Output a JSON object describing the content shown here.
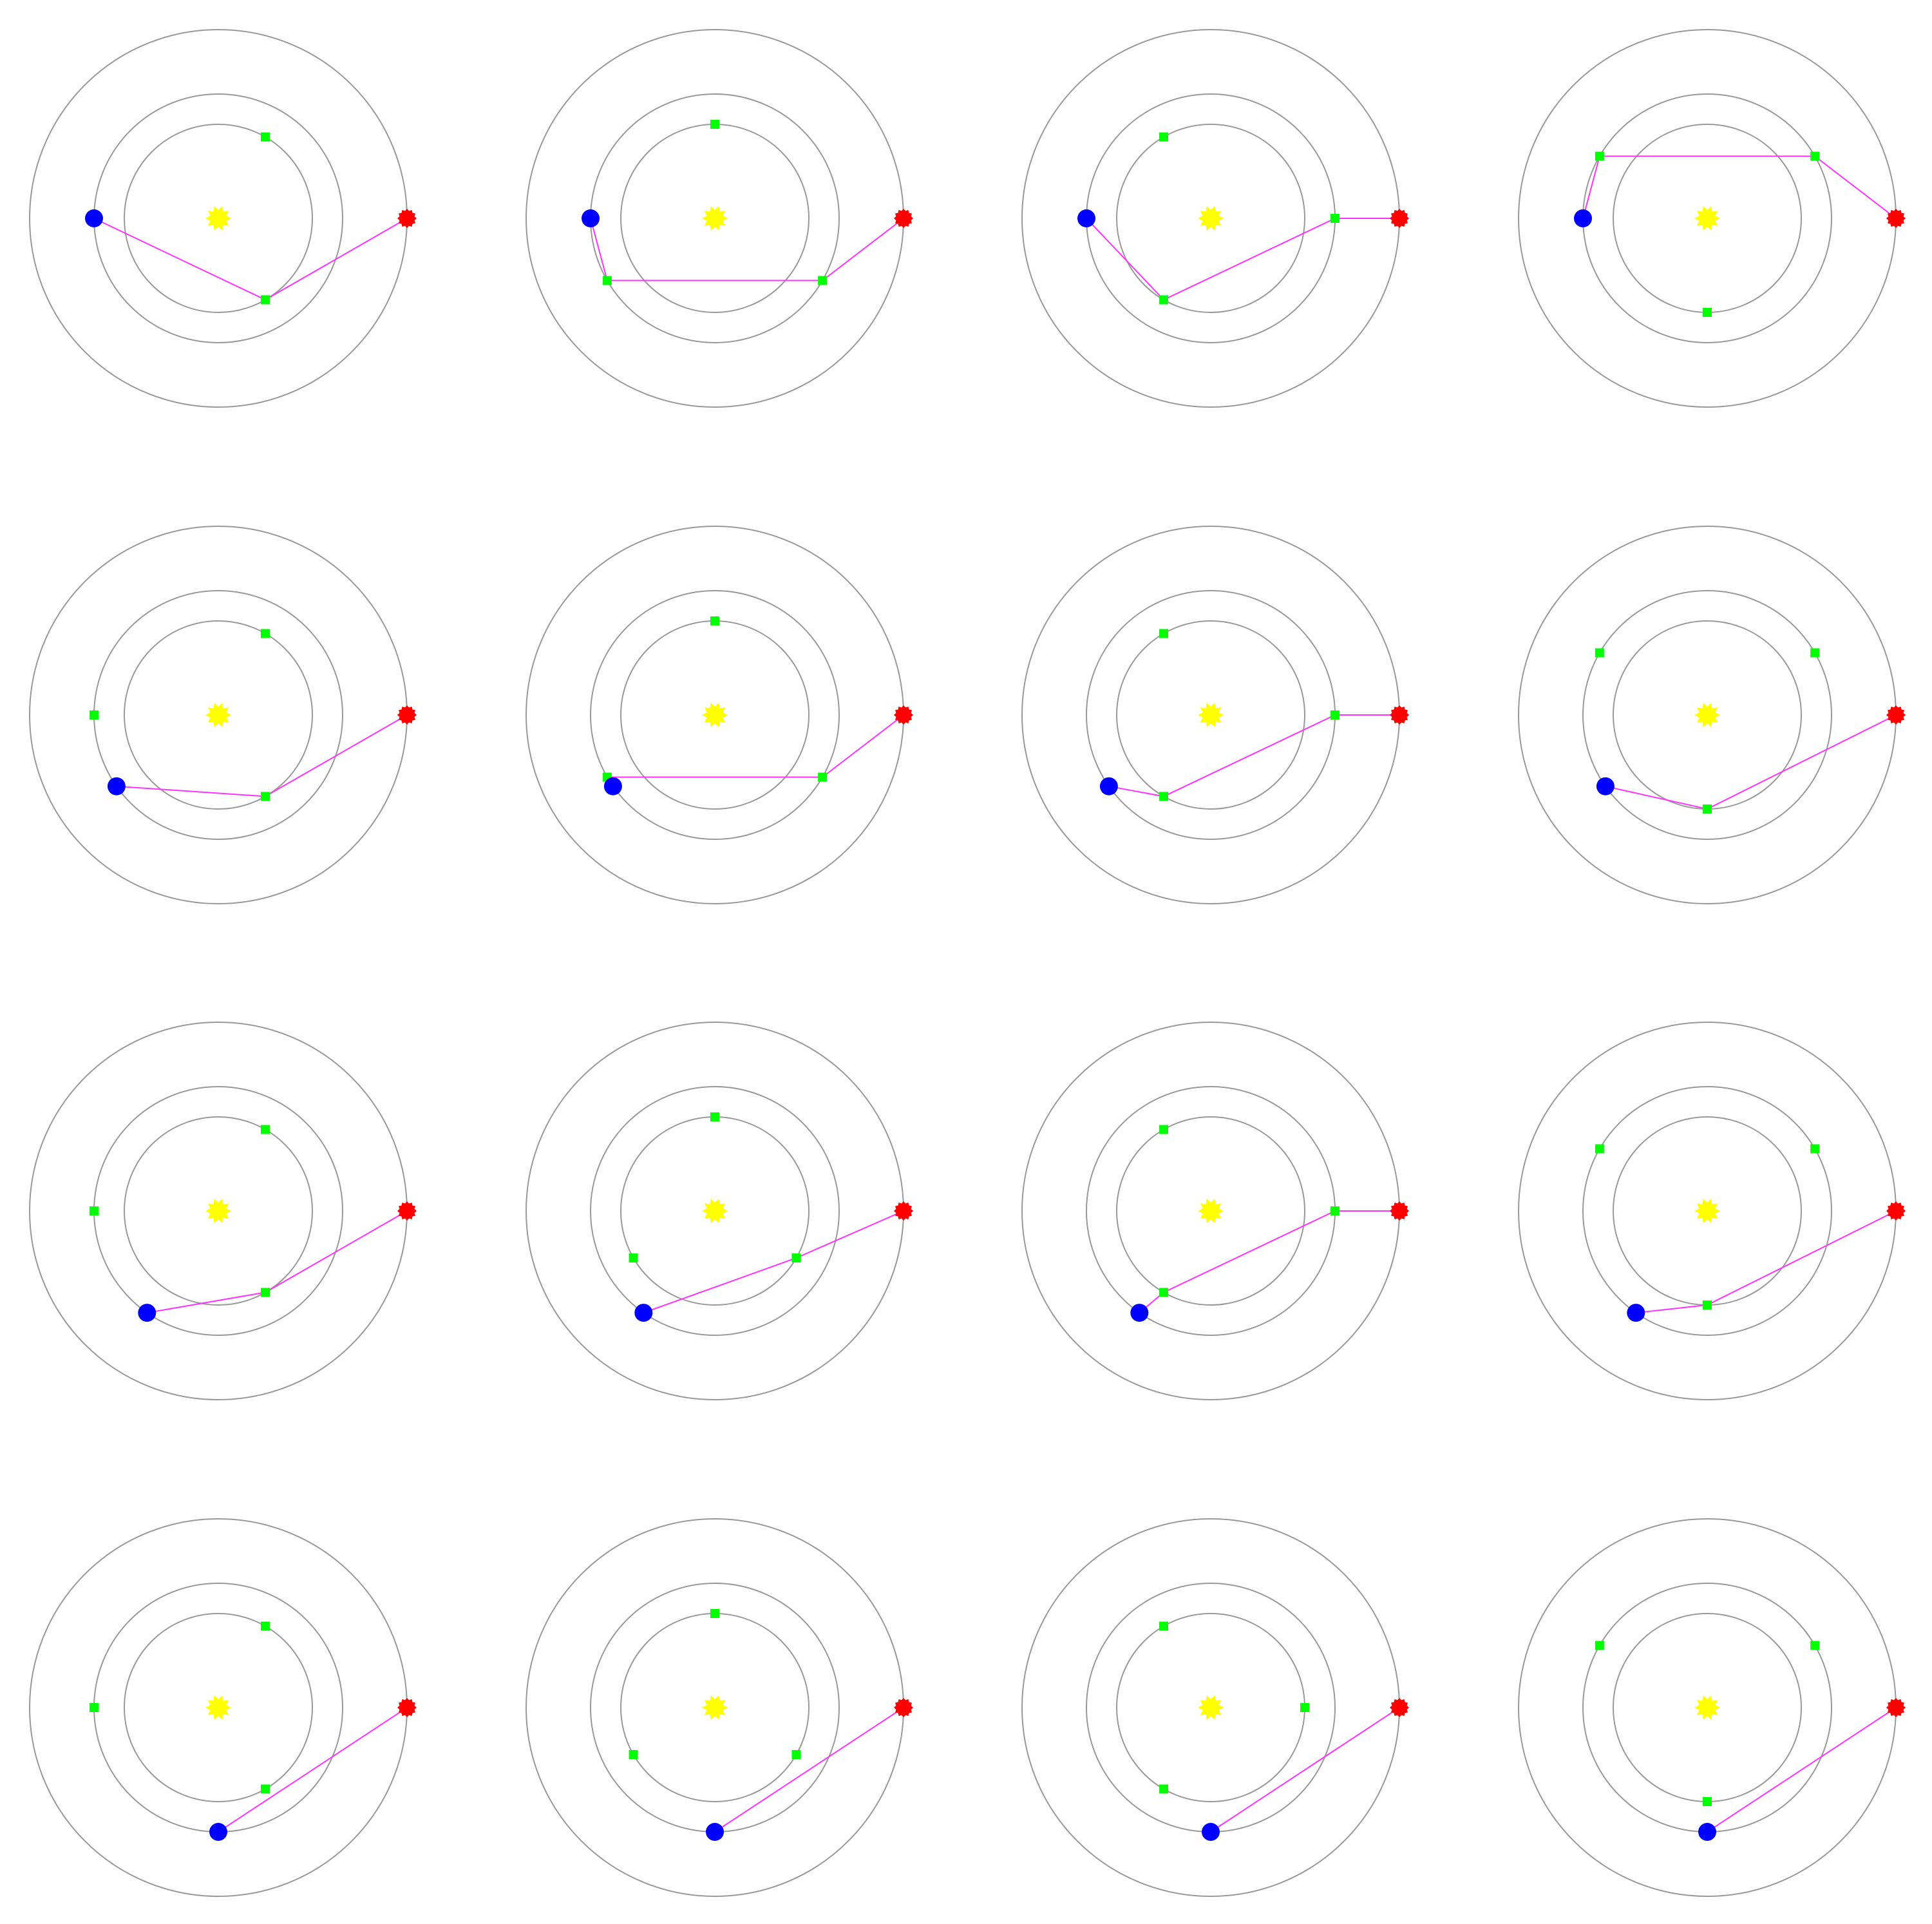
{
  "colors": {
    "ring": "#999999",
    "sun": "#ffff00",
    "start": "#0000ff",
    "target": "#ff0000",
    "relay": "#00ff00",
    "route": "#ff33ff"
  },
  "panels": [
    {
      "start": 180,
      "target": 0,
      "inner": [
        60,
        300
      ],
      "middle": [
        180
      ],
      "route": [
        [
          "m",
          0
        ],
        [
          "i",
          1
        ]
      ]
    },
    {
      "start": 180,
      "target": 0,
      "inner": [
        90
      ],
      "middle": [
        210,
        330
      ],
      "route": [
        [
          "m",
          0
        ],
        [
          "m",
          1
        ]
      ]
    },
    {
      "start": 180,
      "target": 0,
      "inner": [
        120,
        240
      ],
      "middle": [
        0
      ],
      "route": [
        [
          "i",
          1
        ],
        [
          "m",
          0
        ]
      ]
    },
    {
      "start": 180,
      "target": 0,
      "inner": [
        270
      ],
      "middle": [
        30,
        150
      ],
      "route": [
        [
          "m",
          1
        ],
        [
          "m",
          0
        ]
      ]
    },
    {
      "start": 215,
      "target": 0,
      "inner": [
        60,
        300
      ],
      "middle": [
        180
      ],
      "route": [
        [
          "i",
          1
        ]
      ]
    },
    {
      "start": 215,
      "target": 0,
      "inner": [
        90
      ],
      "middle": [
        210,
        330
      ],
      "route": [
        [
          "m",
          0
        ],
        [
          "m",
          1
        ]
      ]
    },
    {
      "start": 215,
      "target": 0,
      "inner": [
        120,
        240
      ],
      "middle": [
        0
      ],
      "route": [
        [
          "i",
          1
        ],
        [
          "m",
          0
        ]
      ]
    },
    {
      "start": 215,
      "target": 0,
      "inner": [
        270
      ],
      "middle": [
        30,
        150
      ],
      "route": [
        [
          "i",
          0
        ]
      ]
    },
    {
      "start": 235,
      "target": 0,
      "inner": [
        60,
        300
      ],
      "middle": [
        180
      ],
      "route": [
        [
          "i",
          1
        ]
      ]
    },
    {
      "start": 235,
      "target": 0,
      "inner": [
        90,
        210,
        330
      ],
      "middle": [],
      "route": [
        [
          "i",
          2
        ]
      ]
    },
    {
      "start": 235,
      "target": 0,
      "inner": [
        120,
        240
      ],
      "middle": [
        0
      ],
      "route": [
        [
          "i",
          1
        ],
        [
          "m",
          0
        ]
      ]
    },
    {
      "start": 235,
      "target": 0,
      "inner": [
        270
      ],
      "middle": [
        30,
        150
      ],
      "route": [
        [
          "i",
          0
        ]
      ]
    },
    {
      "start": 270,
      "target": 0,
      "inner": [
        60,
        300
      ],
      "middle": [
        180
      ],
      "route": []
    },
    {
      "start": 270,
      "target": 0,
      "inner": [
        90,
        210,
        330
      ],
      "middle": [],
      "route": []
    },
    {
      "start": 270,
      "target": 0,
      "inner": [
        0,
        120,
        240
      ],
      "middle": [],
      "route": []
    },
    {
      "start": 270,
      "target": 0,
      "inner": [
        270
      ],
      "middle": [
        30,
        150
      ],
      "route": []
    }
  ]
}
